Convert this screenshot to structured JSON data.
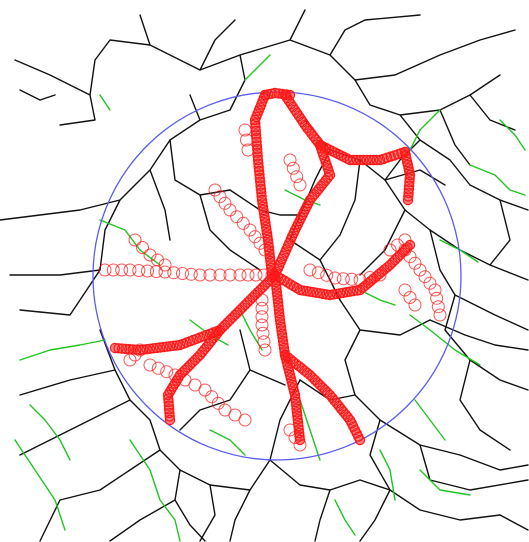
{
  "figure": {
    "kind": "graph-network-visualization",
    "colors": {
      "background": "#ffffff",
      "edge_black": "#111111",
      "edge_green": "#22c422",
      "focus_circle": "#5a5cf0",
      "marker_red": "#ff1a1a"
    },
    "legend": []
  }
}
